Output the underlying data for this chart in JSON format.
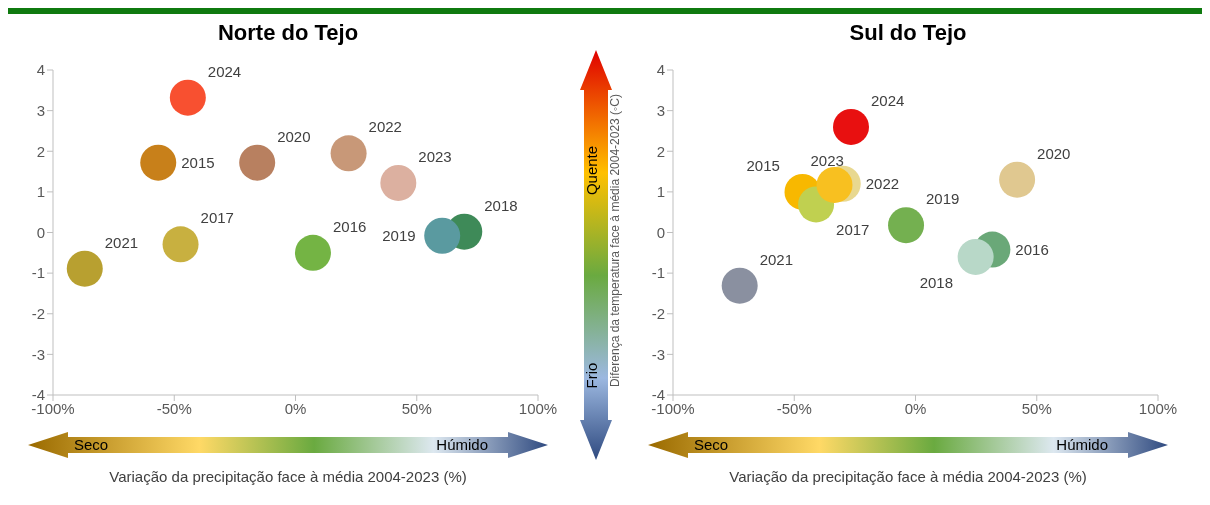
{
  "chart_data": [
    {
      "type": "scatter",
      "title": "Norte do Tejo",
      "xlabel": "Variação da precipitação face à média 2004-2023 (%)",
      "ylabel": "Diferença da temperatura face à média 2004-2023 (◦C)",
      "annotations": [
        "Seco",
        "Húmido",
        "Quente",
        "Frio"
      ],
      "marker": "circle",
      "grid": false,
      "xlim": [
        -100,
        100
      ],
      "ylim": [
        -4,
        4
      ],
      "xticks": [
        {
          "value": -100,
          "label": "-100%"
        },
        {
          "value": -50,
          "label": "-50%"
        },
        {
          "value": 0,
          "label": "0%"
        },
        {
          "value": 50,
          "label": "50%"
        },
        {
          "value": 100,
          "label": "100%"
        }
      ],
      "yticks": [
        -4,
        -3,
        -2,
        -1,
        0,
        1,
        2,
        3,
        4
      ],
      "series": [
        {
          "name": "2015",
          "color": "#c8801a",
          "x": [
            -56.6
          ],
          "values": [
            1.72
          ]
        },
        {
          "name": "2016",
          "color": "#74b444",
          "x": [
            7.2
          ],
          "values": [
            -0.5
          ]
        },
        {
          "name": "2017",
          "color": "#c8b040",
          "x": [
            -47.4
          ],
          "values": [
            -0.29
          ]
        },
        {
          "name": "2018",
          "color": "#3e8a58",
          "x": [
            69.6
          ],
          "values": [
            0.02
          ]
        },
        {
          "name": "2019",
          "color": "#5a9aa0",
          "x": [
            60.5
          ],
          "values": [
            -0.08
          ]
        },
        {
          "name": "2020",
          "color": "#b88060",
          "x": [
            -15.8
          ],
          "values": [
            1.72
          ]
        },
        {
          "name": "2021",
          "color": "#b8a030",
          "x": [
            -86.9
          ],
          "values": [
            -0.89
          ]
        },
        {
          "name": "2022",
          "color": "#c89878",
          "x": [
            21.9
          ],
          "values": [
            1.95
          ]
        },
        {
          "name": "2023",
          "color": "#dcb0a0",
          "x": [
            42.4
          ],
          "values": [
            1.22
          ]
        },
        {
          "name": "2024",
          "color": "#f85030",
          "x": [
            -44.4
          ],
          "values": [
            3.32
          ]
        }
      ]
    },
    {
      "type": "scatter",
      "title": "Sul do Tejo",
      "xlabel": "Variação da precipitação face à média 2004-2023 (%)",
      "annotations": [
        "Seco",
        "Húmido"
      ],
      "marker": "circle",
      "grid": false,
      "xlim": [
        -100,
        100
      ],
      "ylim": [
        -4,
        4
      ],
      "xticks": [
        {
          "value": -100,
          "label": "-100%"
        },
        {
          "value": -50,
          "label": "-50%"
        },
        {
          "value": 0,
          "label": "0%"
        },
        {
          "value": 50,
          "label": "50%"
        },
        {
          "value": 100,
          "label": "100%"
        }
      ],
      "yticks": [
        -4,
        -3,
        -2,
        -1,
        0,
        1,
        2,
        3,
        4
      ],
      "series": [
        {
          "name": "2015",
          "color": "#f8b800",
          "x": [
            -46.6
          ],
          "values": [
            1.0
          ]
        },
        {
          "name": "2016",
          "color": "#6aa878",
          "x": [
            31.7
          ],
          "values": [
            -0.42
          ]
        },
        {
          "name": "2017",
          "color": "#c0d050",
          "x": [
            -41
          ],
          "values": [
            0.69
          ]
        },
        {
          "name": "2018",
          "color": "#b8d8c8",
          "x": [
            24.8
          ],
          "values": [
            -0.6
          ]
        },
        {
          "name": "2019",
          "color": "#74b050",
          "x": [
            -3.9
          ],
          "values": [
            0.18
          ]
        },
        {
          "name": "2020",
          "color": "#e0c890",
          "x": [
            41.9
          ],
          "values": [
            1.3
          ]
        },
        {
          "name": "2021",
          "color": "#8a90a0",
          "x": [
            -72.5
          ],
          "values": [
            -1.31
          ]
        },
        {
          "name": "2022",
          "color": "#e8d890",
          "x": [
            -30
          ],
          "values": [
            1.2
          ]
        },
        {
          "name": "2023",
          "color": "#f8c020",
          "x": [
            -33.4
          ],
          "values": [
            1.17
          ]
        },
        {
          "name": "2024",
          "color": "#e81010",
          "x": [
            -26.6
          ],
          "values": [
            2.6
          ]
        }
      ]
    }
  ]
}
